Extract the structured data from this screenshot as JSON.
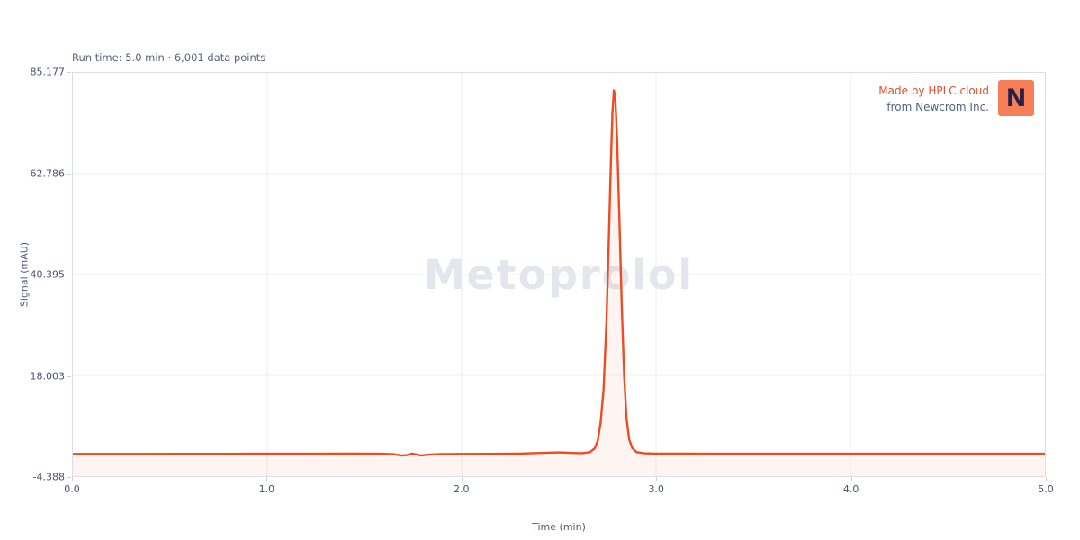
{
  "header": {
    "run_info": "Run time: 5.0 min · 6,001 data points"
  },
  "watermark": "Metoprolol",
  "attribution": {
    "line1": "Made by HPLC.cloud",
    "line2": "from Newcrom Inc.",
    "logo_letter": "N",
    "line1_color": "#e0512e",
    "line2_color": "#55627e",
    "logo_bg": "#f87e57",
    "logo_fg": "#26204a"
  },
  "chart_data": {
    "type": "line",
    "title": "Metoprolol",
    "xlabel": "Time (min)",
    "ylabel": "Signal (mAU)",
    "xlim": [
      0.0,
      5.0
    ],
    "ylim": [
      -4.388,
      85.177
    ],
    "xticks": [
      "0.0",
      "1.0",
      "2.0",
      "3.0",
      "4.0",
      "5.0"
    ],
    "yticks": [
      "85.177",
      "62.786",
      "40.395",
      "18.003",
      "-4.388"
    ],
    "grid": true,
    "legend": "none",
    "line_color": "#ee4b22",
    "fill_color": "rgba(238,75,34,0.055)",
    "grid_color": "#eaedf3",
    "watermark_color": "#e3e6ec",
    "series": [
      {
        "name": "Metoprolol",
        "peak_time_min": 2.78,
        "peak_height_mau": 81.3,
        "points": [
          [
            0.0,
            0.55
          ],
          [
            0.3,
            0.55
          ],
          [
            0.6,
            0.56
          ],
          [
            0.9,
            0.58
          ],
          [
            1.2,
            0.61
          ],
          [
            1.45,
            0.62
          ],
          [
            1.58,
            0.6
          ],
          [
            1.65,
            0.5
          ],
          [
            1.69,
            0.18
          ],
          [
            1.72,
            0.3
          ],
          [
            1.745,
            0.62
          ],
          [
            1.765,
            0.45
          ],
          [
            1.79,
            0.2
          ],
          [
            1.83,
            0.38
          ],
          [
            1.9,
            0.52
          ],
          [
            2.0,
            0.55
          ],
          [
            2.15,
            0.57
          ],
          [
            2.3,
            0.62
          ],
          [
            2.42,
            0.78
          ],
          [
            2.5,
            0.9
          ],
          [
            2.56,
            0.78
          ],
          [
            2.62,
            0.72
          ],
          [
            2.66,
            0.95
          ],
          [
            2.685,
            1.8
          ],
          [
            2.7,
            3.5
          ],
          [
            2.715,
            7.5
          ],
          [
            2.73,
            15.0
          ],
          [
            2.745,
            30.0
          ],
          [
            2.757,
            48.0
          ],
          [
            2.768,
            66.0
          ],
          [
            2.776,
            76.5
          ],
          [
            2.783,
            81.3
          ],
          [
            2.79,
            80.0
          ],
          [
            2.8,
            70.0
          ],
          [
            2.812,
            52.0
          ],
          [
            2.824,
            33.0
          ],
          [
            2.836,
            18.0
          ],
          [
            2.848,
            8.5
          ],
          [
            2.862,
            3.8
          ],
          [
            2.878,
            1.8
          ],
          [
            2.9,
            0.95
          ],
          [
            2.94,
            0.68
          ],
          [
            3.0,
            0.62
          ],
          [
            3.3,
            0.6
          ],
          [
            3.7,
            0.6
          ],
          [
            4.2,
            0.6
          ],
          [
            4.6,
            0.6
          ],
          [
            5.0,
            0.6
          ]
        ]
      }
    ]
  }
}
